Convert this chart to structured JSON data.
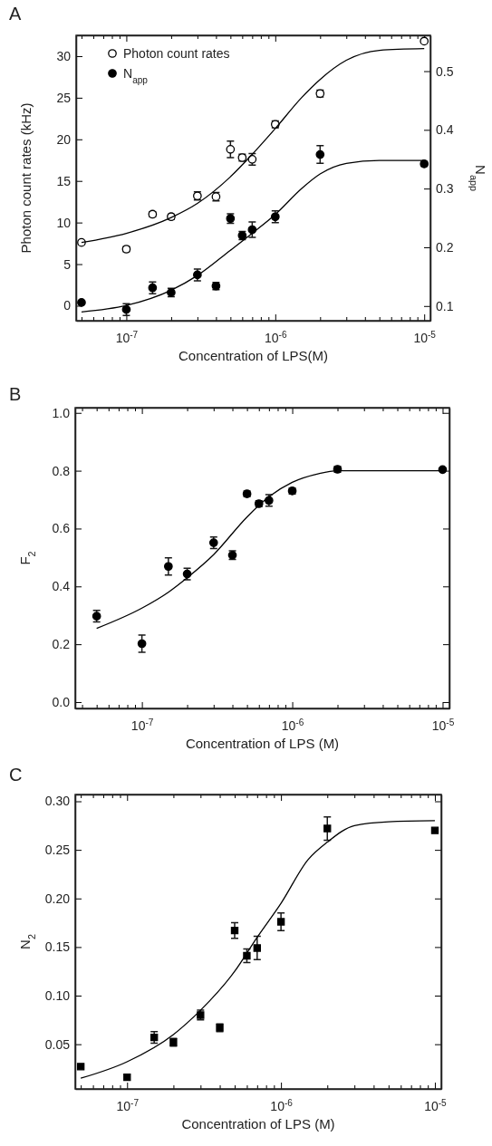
{
  "chart_data": [
    {
      "type": "scatter",
      "title": "A",
      "xlabel": "Concentration of LPS(M)",
      "ylabel": "Photon count rates (kHz)",
      "y2label": "N$_{app}$",
      "log": "x",
      "legend": "top left",
      "grid": false,
      "x": [
        5e-08,
        1e-07,
        1.5e-07,
        2e-07,
        3e-07,
        4e-07,
        5e-07,
        6e-07,
        7e-07,
        1e-06,
        2e-06,
        1e-05
      ],
      "xlim": [
        4.6e-08,
        1.1e-05
      ],
      "xticks": [
        {
          "value": 5e-08,
          "label": null
        },
        {
          "value": 6e-08,
          "label": null
        },
        {
          "value": 7e-08,
          "label": null
        },
        {
          "value": 8e-08,
          "label": null
        },
        {
          "value": 9e-08,
          "label": null
        },
        {
          "value": 1e-07,
          "label": "10$^{-7}$"
        },
        {
          "value": 2e-07,
          "label": null
        },
        {
          "value": 3e-07,
          "label": null
        },
        {
          "value": 4e-07,
          "label": null
        },
        {
          "value": 5e-07,
          "label": null
        },
        {
          "value": 6e-07,
          "label": null
        },
        {
          "value": 7e-07,
          "label": null
        },
        {
          "value": 8e-07,
          "label": null
        },
        {
          "value": 9e-07,
          "label": null
        },
        {
          "value": 1e-06,
          "label": "10$^{-6}$"
        },
        {
          "value": 2e-06,
          "label": null
        },
        {
          "value": 3e-06,
          "label": null
        },
        {
          "value": 4e-06,
          "label": null
        },
        {
          "value": 5e-06,
          "label": null
        },
        {
          "value": 6e-06,
          "label": null
        },
        {
          "value": 7e-06,
          "label": null
        },
        {
          "value": 8e-06,
          "label": null
        },
        {
          "value": 9e-06,
          "label": null
        },
        {
          "value": 1e-05,
          "label": "10$^{-5}$"
        }
      ],
      "ylim": [
        -1.8,
        32.5
      ],
      "yticks": [
        0,
        5,
        10,
        15,
        20,
        25,
        30
      ],
      "y2lim": [
        0.075,
        0.561
      ],
      "y2ticks": [
        0.1,
        0.2,
        0.3,
        0.4,
        0.5
      ],
      "series": [
        {
          "name": "Photon count rates",
          "color": "#ffffff",
          "marker": "circle",
          "values": [
            7.6,
            6.8,
            11.0,
            10.7,
            13.2,
            13.1,
            18.8,
            17.8,
            17.6,
            21.8,
            25.5,
            31.8
          ],
          "errors": [
            0.2,
            0.3,
            0.3,
            0.3,
            0.5,
            0.5,
            1.0,
            0.4,
            0.7,
            0.4,
            0.4,
            null
          ]
        },
        {
          "name": "N$_{app}$",
          "color": "#000000",
          "marker": "circle",
          "axis": "y2",
          "values": [
            0.106,
            0.094,
            0.131,
            0.123,
            0.153,
            0.134,
            0.249,
            0.22,
            0.23,
            0.252,
            0.358,
            0.342
          ],
          "errors": [
            null,
            0.01,
            0.01,
            0.007,
            0.01,
            0.006,
            0.008,
            0.007,
            0.013,
            0.01,
            0.015,
            0.004
          ]
        },
        {
          "type": "line",
          "color": "#000000",
          "x": [
            5e-08,
            1e-07,
            2e-07,
            3e-07,
            5e-07,
            7e-07,
            1e-06,
            1.5e-06,
            2e-06,
            3e-06,
            5e-06,
            1e-05
          ],
          "values": [
            7.6,
            8.7,
            10.6,
            12.3,
            15.5,
            18.2,
            21.3,
            25.0,
            27.2,
            29.5,
            30.7,
            30.9
          ]
        },
        {
          "type": "line",
          "color": "#000000",
          "axis": "y2",
          "x": [
            5e-08,
            1e-07,
            2e-07,
            3e-07,
            5e-07,
            7e-07,
            1e-06,
            1.5e-06,
            2e-06,
            3e-06,
            5e-06,
            1e-05
          ],
          "values": [
            0.09,
            0.101,
            0.127,
            0.152,
            0.195,
            0.224,
            0.256,
            0.3,
            0.325,
            0.343,
            0.348,
            0.348
          ]
        }
      ]
    },
    {
      "type": "scatter",
      "title": "B",
      "xlabel": "Concentration of LPS (M)",
      "ylabel": "F$_{2}$",
      "log": "x",
      "grid": false,
      "x": [
        5e-08,
        1e-07,
        1.5e-07,
        2e-07,
        3e-07,
        4e-07,
        5e-07,
        6e-07,
        7e-07,
        1e-06,
        2e-06,
        1e-05
      ],
      "xlim": [
        3.6e-08,
        1.11e-05
      ],
      "xticks": [
        {
          "value": 4e-08,
          "label": null
        },
        {
          "value": 5e-08,
          "label": null
        },
        {
          "value": 6e-08,
          "label": null
        },
        {
          "value": 7e-08,
          "label": null
        },
        {
          "value": 8e-08,
          "label": null
        },
        {
          "value": 9e-08,
          "label": null
        },
        {
          "value": 1e-07,
          "label": "10$^{-7}$"
        },
        {
          "value": 2e-07,
          "label": null
        },
        {
          "value": 3e-07,
          "label": null
        },
        {
          "value": 4e-07,
          "label": null
        },
        {
          "value": 5e-07,
          "label": null
        },
        {
          "value": 6e-07,
          "label": null
        },
        {
          "value": 7e-07,
          "label": null
        },
        {
          "value": 8e-07,
          "label": null
        },
        {
          "value": 9e-07,
          "label": null
        },
        {
          "value": 1e-06,
          "label": "10$^{-6}$"
        },
        {
          "value": 2e-06,
          "label": null
        },
        {
          "value": 3e-06,
          "label": null
        },
        {
          "value": 4e-06,
          "label": null
        },
        {
          "value": 5e-06,
          "label": null
        },
        {
          "value": 6e-06,
          "label": null
        },
        {
          "value": 7e-06,
          "label": null
        },
        {
          "value": 8e-06,
          "label": null
        },
        {
          "value": 9e-06,
          "label": null
        },
        {
          "value": 1e-05,
          "label": "10$^{-5}$"
        }
      ],
      "ylim": [
        -0.022,
        1.018
      ],
      "yticks": [
        {
          "value": 0,
          "label": "0.0"
        },
        {
          "value": 0.2,
          "label": "0.2"
        },
        {
          "value": 0.4,
          "label": "0.4"
        },
        {
          "value": 0.6,
          "label": "0.6"
        },
        {
          "value": 0.8,
          "label": "0.8"
        },
        {
          "value": 1.0,
          "label": "1.0"
        }
      ],
      "series": [
        {
          "color": "#000000",
          "marker": "circle",
          "values": [
            0.297,
            0.202,
            0.469,
            0.443,
            0.551,
            0.508,
            0.72,
            0.686,
            0.697,
            0.73,
            0.805,
            0.804
          ],
          "errors": [
            0.02,
            0.03,
            0.03,
            0.02,
            0.02,
            0.015,
            0.01,
            0.01,
            0.02,
            0.01,
            0.01,
            null
          ]
        },
        {
          "type": "line",
          "color": "#000000",
          "x": [
            5e-08,
            1e-07,
            1.5e-07,
            2e-07,
            3e-07,
            5e-07,
            7e-07,
            1e-06,
            1.5e-06,
            2e-06,
            3e-06,
            1e-05
          ],
          "values": [
            0.255,
            0.325,
            0.38,
            0.43,
            0.51,
            0.64,
            0.71,
            0.76,
            0.79,
            0.8,
            0.8,
            0.8
          ]
        }
      ]
    },
    {
      "type": "scatter",
      "title": "C",
      "xlabel": "Concentration of LPS (M)",
      "ylabel": "N$_{2}$",
      "log": "x",
      "grid": false,
      "x": [
        5e-08,
        1e-07,
        1.5e-07,
        2e-07,
        3e-07,
        4e-07,
        5e-07,
        6e-07,
        7e-07,
        1e-06,
        2e-06,
        1e-05
      ],
      "xlim": [
        4.6e-08,
        1.1e-05
      ],
      "xticks": [
        {
          "value": 5e-08,
          "label": null
        },
        {
          "value": 6e-08,
          "label": null
        },
        {
          "value": 7e-08,
          "label": null
        },
        {
          "value": 8e-08,
          "label": null
        },
        {
          "value": 9e-08,
          "label": null
        },
        {
          "value": 1e-07,
          "label": "10$^{-7}$"
        },
        {
          "value": 2e-07,
          "label": null
        },
        {
          "value": 3e-07,
          "label": null
        },
        {
          "value": 4e-07,
          "label": null
        },
        {
          "value": 5e-07,
          "label": null
        },
        {
          "value": 6e-07,
          "label": null
        },
        {
          "value": 7e-07,
          "label": null
        },
        {
          "value": 8e-07,
          "label": null
        },
        {
          "value": 9e-07,
          "label": null
        },
        {
          "value": 1e-06,
          "label": "10$^{-6}$"
        },
        {
          "value": 2e-06,
          "label": null
        },
        {
          "value": 3e-06,
          "label": null
        },
        {
          "value": 4e-06,
          "label": null
        },
        {
          "value": 5e-06,
          "label": null
        },
        {
          "value": 6e-06,
          "label": null
        },
        {
          "value": 7e-06,
          "label": null
        },
        {
          "value": 8e-06,
          "label": null
        },
        {
          "value": 9e-06,
          "label": null
        },
        {
          "value": 1e-05,
          "label": "10$^{-5}$"
        }
      ],
      "ylim": [
        0.004,
        0.307
      ],
      "yticks": [
        {
          "value": 0.05,
          "label": "0.05"
        },
        {
          "value": 0.1,
          "label": "0.10"
        },
        {
          "value": 0.15,
          "label": "0.15"
        },
        {
          "value": 0.2,
          "label": "0.20"
        },
        {
          "value": 0.25,
          "label": "0.25"
        },
        {
          "value": 0.3,
          "label": "0.30"
        }
      ],
      "series": [
        {
          "color": "#000000",
          "marker": "square",
          "values": [
            0.027,
            0.016,
            0.057,
            0.052,
            0.08,
            0.067,
            0.167,
            0.141,
            0.149,
            0.176,
            0.272,
            0.27
          ],
          "errors": [
            null,
            null,
            0.006,
            0.004,
            0.005,
            0.004,
            0.008,
            0.007,
            0.012,
            0.009,
            0.012,
            null
          ]
        },
        {
          "type": "line",
          "color": "#000000",
          "x": [
            5e-08,
            1e-07,
            2e-07,
            3e-07,
            5e-07,
            7e-07,
            1e-06,
            1.5e-06,
            2e-06,
            3e-06,
            5e-06,
            1e-05
          ],
          "values": [
            0.015,
            0.032,
            0.06,
            0.085,
            0.125,
            0.16,
            0.195,
            0.24,
            0.258,
            0.275,
            0.279,
            0.28
          ]
        }
      ]
    }
  ]
}
